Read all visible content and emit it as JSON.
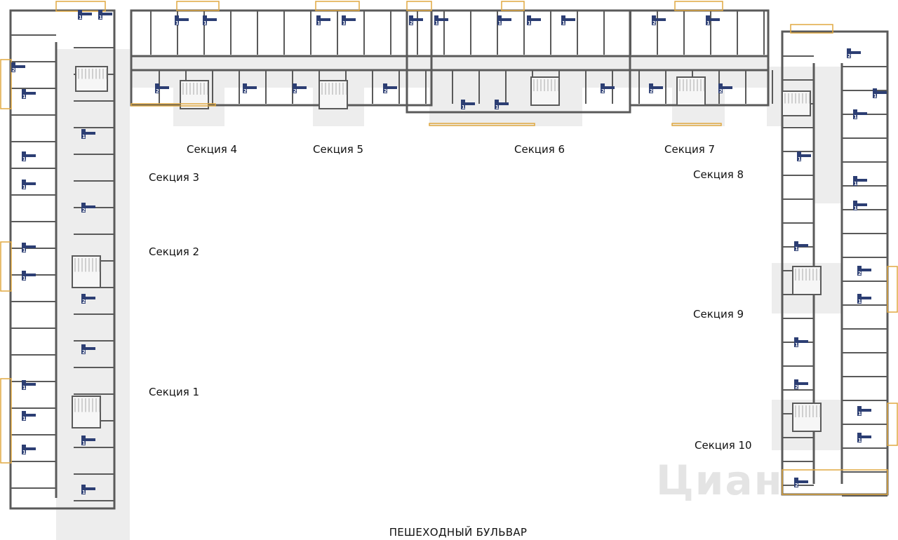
{
  "sections": [
    {
      "id": "1",
      "label": "Секция 1"
    },
    {
      "id": "2",
      "label": "Секция 2"
    },
    {
      "id": "3",
      "label": "Секция 3"
    },
    {
      "id": "4",
      "label": "Секция 4"
    },
    {
      "id": "5",
      "label": "Секция 5"
    },
    {
      "id": "6",
      "label": "Секция 6"
    },
    {
      "id": "7",
      "label": "Секция 7"
    },
    {
      "id": "8",
      "label": "Секция 8"
    },
    {
      "id": "9",
      "label": "Секция 9"
    },
    {
      "id": "10",
      "label": "Секция 10"
    }
  ],
  "street_label": "ПЕШЕХОДНЫЙ БУЛЬВАР",
  "watermark": "Циан",
  "apartment_rooms": [
    2,
    1,
    1,
    1,
    1,
    1,
    1,
    1,
    1,
    1,
    2,
    2,
    2,
    1,
    1,
    1,
    1,
    1,
    1,
    2,
    2,
    1,
    1,
    2,
    2,
    2,
    1,
    1,
    1,
    1,
    1,
    1,
    2,
    2,
    2,
    1,
    2,
    2,
    1,
    1,
    1,
    1,
    1,
    1,
    2,
    1,
    1,
    2,
    1,
    1,
    2,
    2,
    1,
    1,
    2
  ],
  "colors": {
    "wall": "#5a5a5a",
    "balcony": "#e0a840",
    "corridor": "#ededed",
    "badge": "#2c3e73",
    "text": "#111111"
  }
}
